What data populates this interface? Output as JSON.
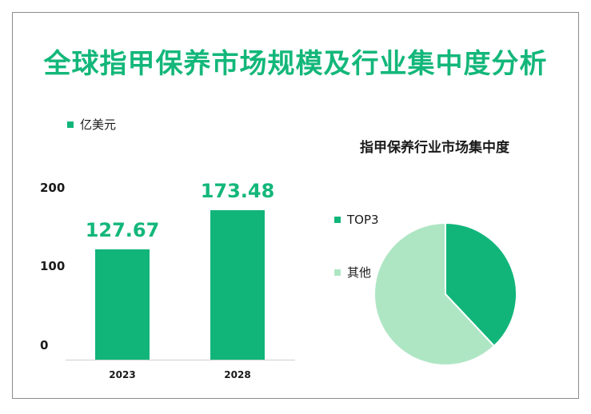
{
  "title": "全球指甲保养市场规模及行业集中度分析",
  "chart_data": [
    {
      "type": "bar",
      "legend": [
        "亿美元"
      ],
      "categories": [
        "2023",
        "2028"
      ],
      "series": [
        {
          "name": "亿美元",
          "values": [
            127.67,
            173.48
          ]
        }
      ],
      "data_labels": [
        "127.67",
        "173.48"
      ],
      "yticks": [
        "200",
        "100",
        "0"
      ],
      "ylim": [
        0,
        200
      ],
      "color": "#11b57a"
    },
    {
      "type": "pie",
      "title": "指甲保养行业市场集中度",
      "labels": [
        "TOP3",
        "其他"
      ],
      "values": [
        38,
        62
      ],
      "colors": [
        "#11b57a",
        "#aee6c4"
      ]
    }
  ]
}
